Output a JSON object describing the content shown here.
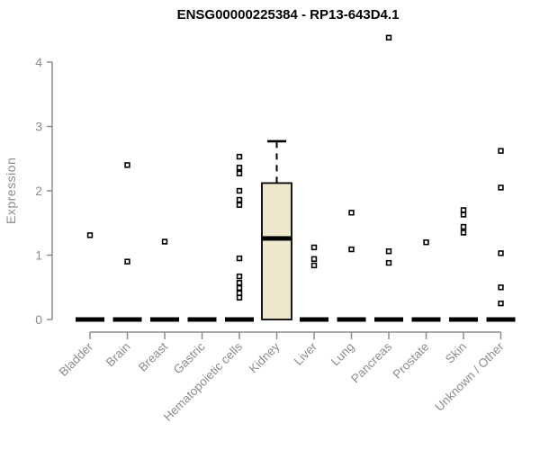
{
  "chart_data": {
    "type": "box",
    "title": "ENSG00000225384 - RP13-643D4.1",
    "ylabel": "Expression",
    "ylim": [
      0,
      4
    ],
    "yticks": [
      0,
      1,
      2,
      3,
      4
    ],
    "grid": false,
    "legend": null,
    "categories": [
      "Bladder",
      "Brain",
      "Breast",
      "Gastric",
      "Hematopoietic cells",
      "Kidney",
      "Liver",
      "Lung",
      "Pancreas",
      "Prostate",
      "Skin",
      "Unknown / Other"
    ],
    "boxes": [
      {
        "category": "Bladder",
        "median": 0,
        "q1": 0,
        "q3": 0,
        "whisker_low": 0,
        "whisker_high": 0,
        "outliers": [
          1.31
        ]
      },
      {
        "category": "Brain",
        "median": 0,
        "q1": 0,
        "q3": 0,
        "whisker_low": 0,
        "whisker_high": 0,
        "outliers": [
          2.4,
          0.9
        ]
      },
      {
        "category": "Breast",
        "median": 0,
        "q1": 0,
        "q3": 0,
        "whisker_low": 0,
        "whisker_high": 0,
        "outliers": [
          1.21
        ]
      },
      {
        "category": "Gastric",
        "median": 0,
        "q1": 0,
        "q3": 0,
        "whisker_low": 0,
        "whisker_high": 0,
        "outliers": []
      },
      {
        "category": "Hematopoietic cells",
        "median": 0,
        "q1": 0,
        "q3": 0,
        "whisker_low": 0,
        "whisker_high": 0,
        "outliers": [
          2.53,
          2.36,
          2.27,
          2.0,
          1.86,
          1.78,
          0.95,
          0.67,
          0.57,
          0.49,
          0.41,
          0.34
        ]
      },
      {
        "category": "Kidney",
        "median": 1.26,
        "q1": 0,
        "q3": 2.12,
        "whisker_low": 0,
        "whisker_high": 2.77,
        "outliers": []
      },
      {
        "category": "Liver",
        "median": 0,
        "q1": 0,
        "q3": 0,
        "whisker_low": 0,
        "whisker_high": 0,
        "outliers": [
          1.12,
          0.94,
          0.84
        ]
      },
      {
        "category": "Lung",
        "median": 0,
        "q1": 0,
        "q3": 0,
        "whisker_low": 0,
        "whisker_high": 0,
        "outliers": [
          1.66,
          1.09
        ]
      },
      {
        "category": "Pancreas",
        "median": 0,
        "q1": 0,
        "q3": 0,
        "whisker_low": 0,
        "whisker_high": 0,
        "outliers": [
          4.38,
          1.06,
          0.88
        ]
      },
      {
        "category": "Prostate",
        "median": 0,
        "q1": 0,
        "q3": 0,
        "whisker_low": 0,
        "whisker_high": 0,
        "outliers": [
          1.2
        ]
      },
      {
        "category": "Skin",
        "median": 0,
        "q1": 0,
        "q3": 0,
        "whisker_low": 0,
        "whisker_high": 0,
        "outliers": [
          1.7,
          1.63,
          1.44,
          1.35
        ]
      },
      {
        "category": "Unknown / Other",
        "median": 0,
        "q1": 0,
        "q3": 0,
        "whisker_low": 0,
        "whisker_high": 0,
        "outliers": [
          2.62,
          2.05,
          1.03,
          0.5,
          0.25
        ]
      }
    ],
    "colors": {
      "box_fill": "#EDE7CE",
      "box_stroke": "#000000",
      "median": "#000000",
      "outlier_stroke": "#000000",
      "outlier_fill": "#ffffff",
      "axis": "#8c8c8c",
      "tick_label": "#8c8c8c",
      "title": "#000000"
    }
  }
}
